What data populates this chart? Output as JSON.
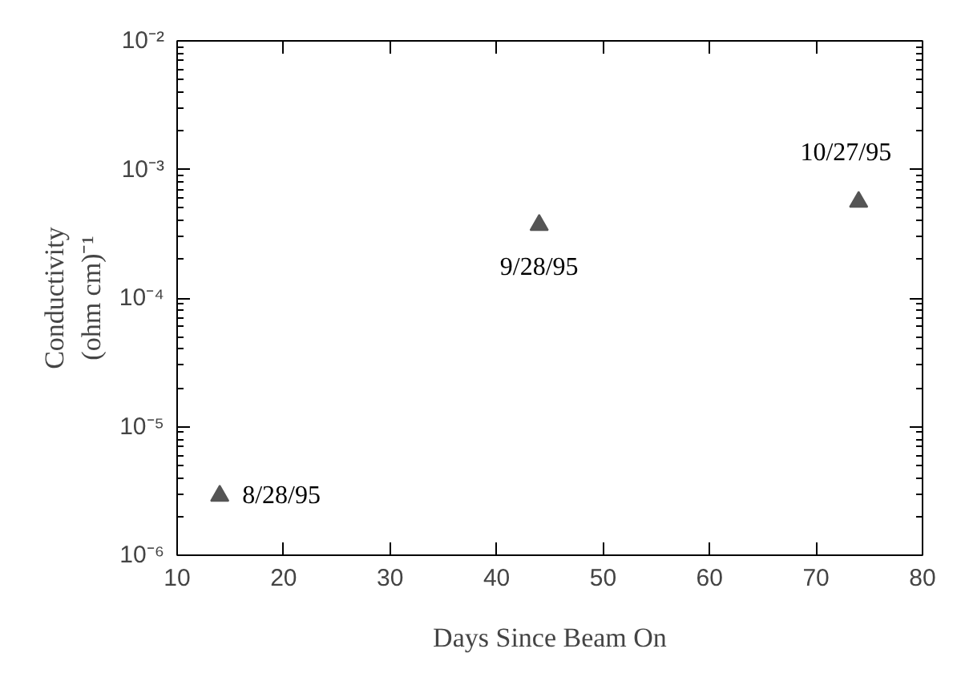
{
  "chart_data": {
    "type": "scatter",
    "xlabel": "Days Since Beam On",
    "ylabel": "Conductivity\n(ohm cm)⁻¹",
    "series": [
      {
        "color": "#555555",
        "x": [
          14,
          44,
          74
        ],
        "values": [
          2.9e-06,
          0.00037,
          0.00056
        ]
      }
    ],
    "marker": "triangle",
    "log": "y",
    "grid": false,
    "xlim": [
      10,
      80
    ],
    "xticks": [
      10,
      20,
      30,
      40,
      50,
      60,
      70,
      80
    ],
    "ylim": [
      1e-06,
      0.01
    ],
    "yticks": [
      {
        "value": 1e-06,
        "label": "10⁻⁶"
      },
      {
        "value": 1e-05,
        "label": "10⁻⁵"
      },
      {
        "value": 0.0001,
        "label": "10⁻⁴"
      },
      {
        "value": 0.001,
        "label": "10⁻³"
      },
      {
        "value": 0.01,
        "label": "10⁻²"
      }
    ],
    "annotations": [
      {
        "text": "8/28/95",
        "x": 14,
        "y": 2.9e-06
      },
      {
        "text": "9/28/95",
        "x": 44,
        "y": 0.00037
      },
      {
        "text": "10/27/95",
        "x": 74,
        "y": 0.00056
      }
    ]
  }
}
